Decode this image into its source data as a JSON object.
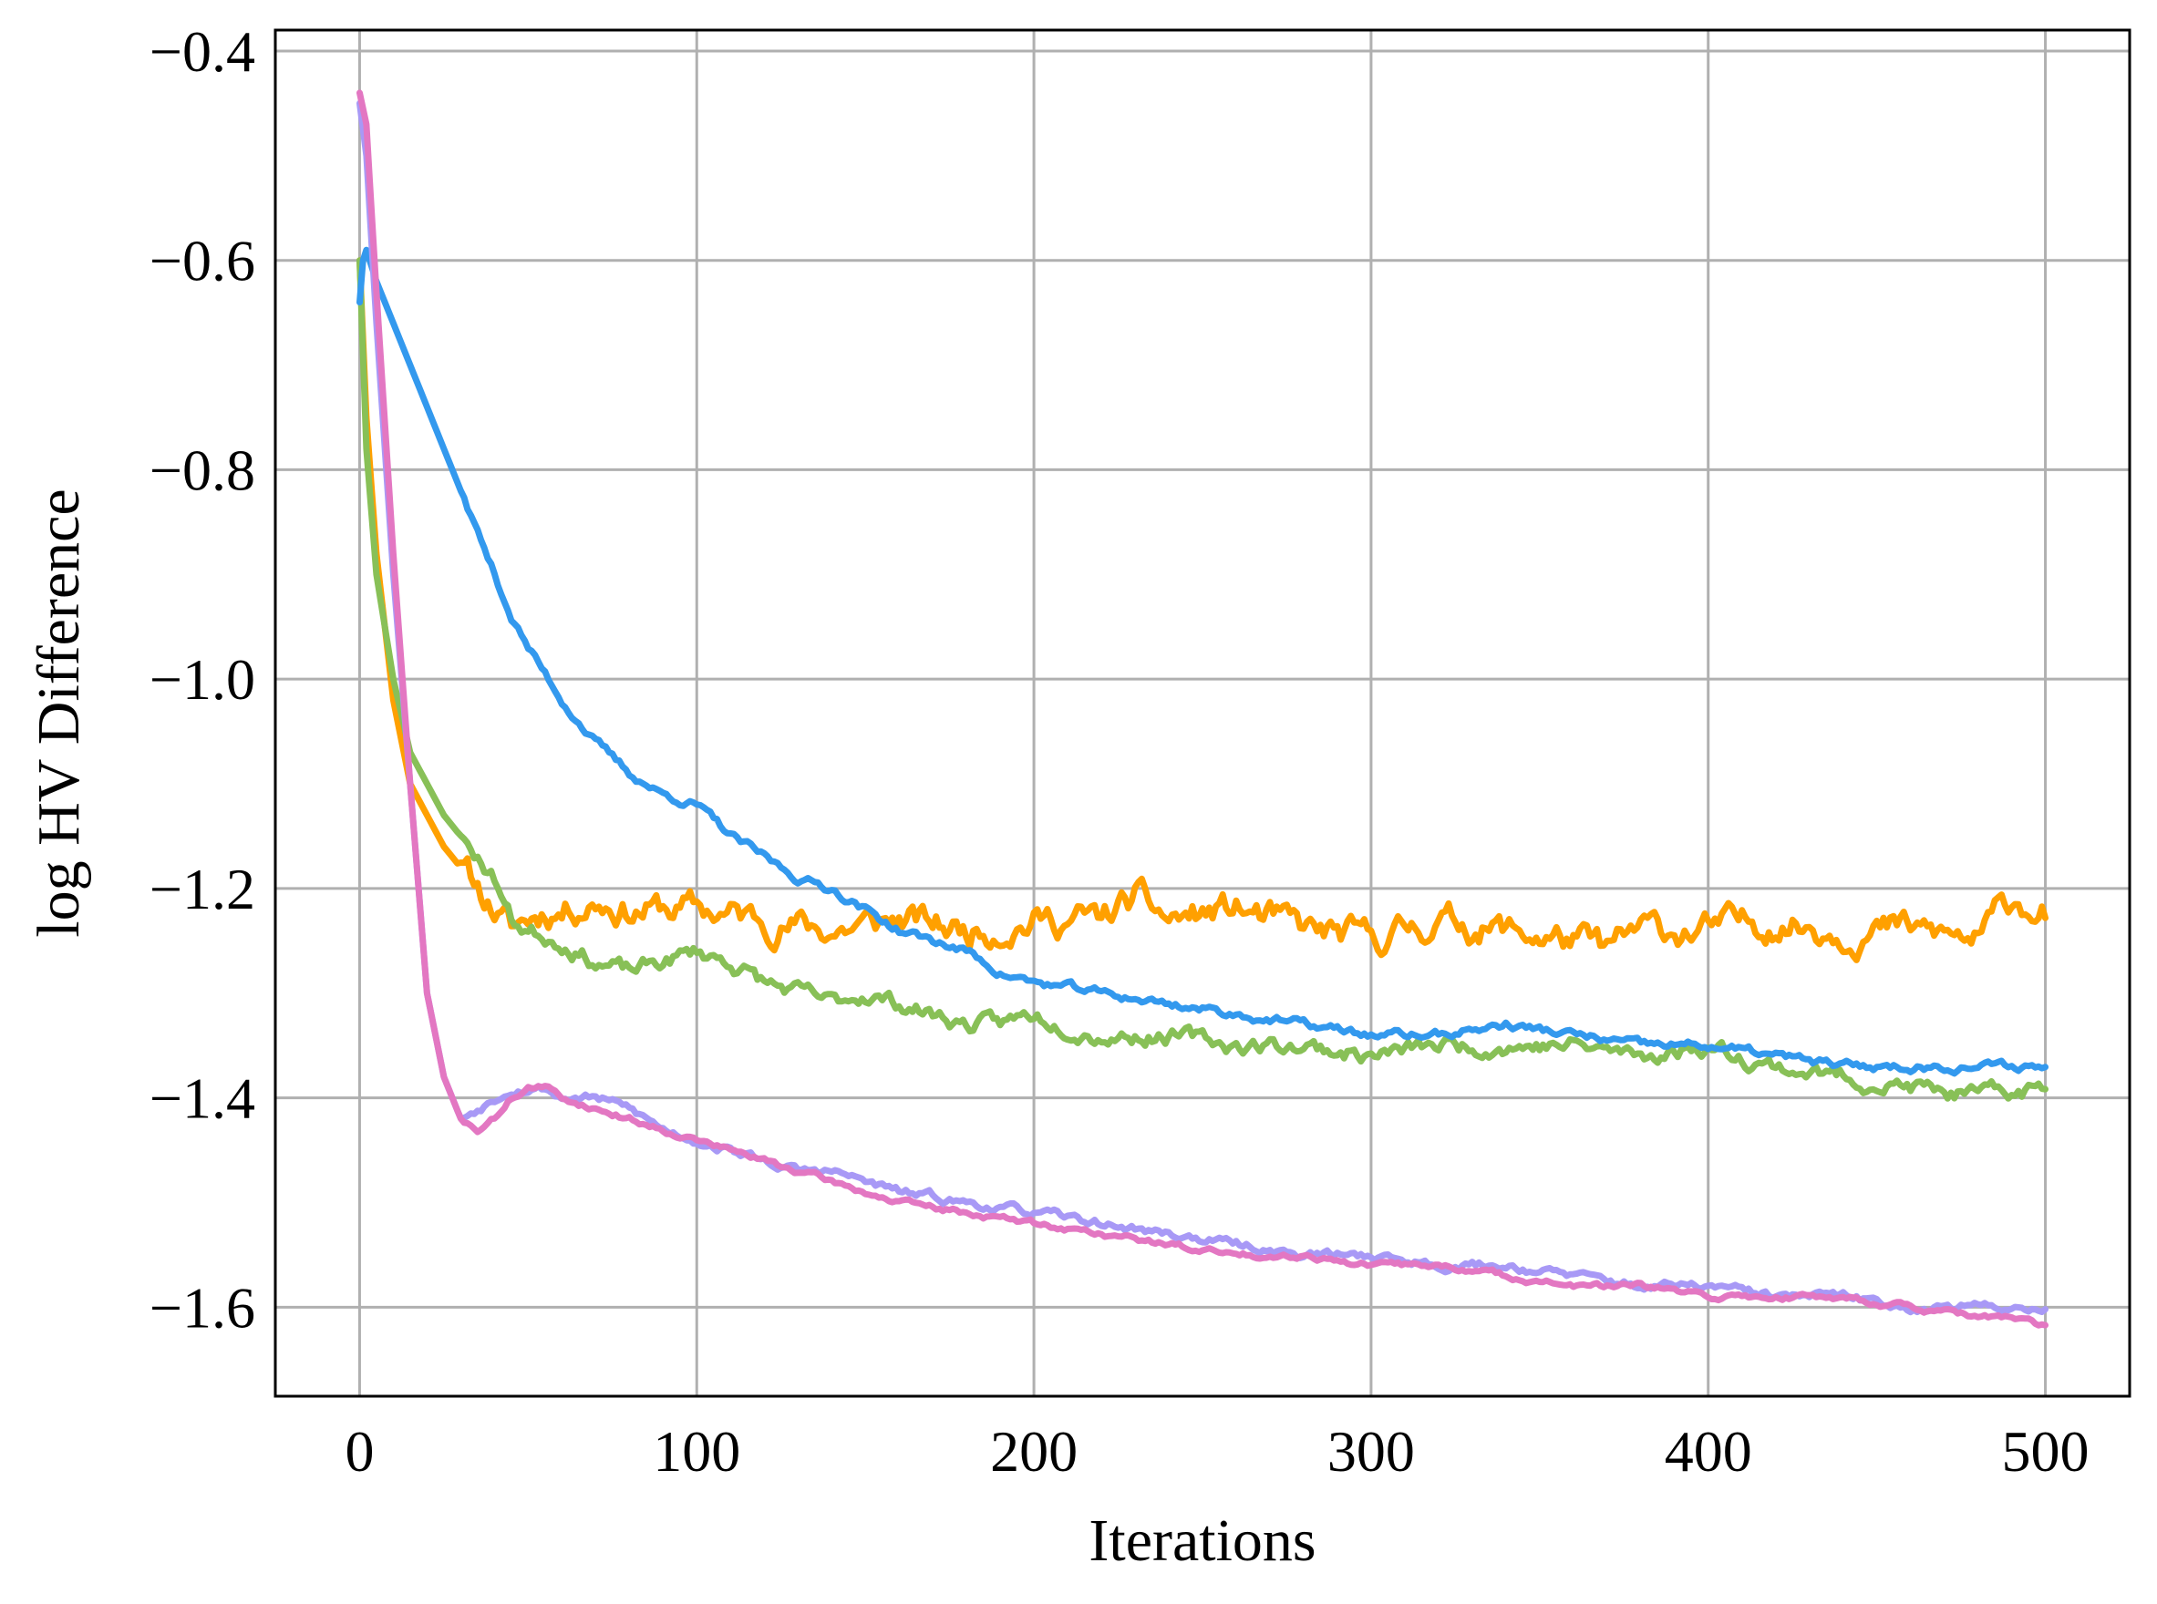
{
  "chart_data": {
    "type": "line",
    "title": "",
    "xlabel": "Iterations",
    "ylabel": "log HV Difference",
    "xlim": [
      -25,
      525
    ],
    "ylim": [
      -1.685,
      -0.38
    ],
    "xticks": [
      0,
      100,
      200,
      300,
      400,
      500
    ],
    "xtick_labels": [
      "0",
      "100",
      "200",
      "300",
      "400",
      "500"
    ],
    "yticks": [
      -0.4,
      -0.6,
      -0.8,
      -1.0,
      -1.2,
      -1.4,
      -1.6
    ],
    "ytick_labels": [
      "−0.4",
      "−0.6",
      "−0.8",
      "−1.0",
      "−1.2",
      "−1.4",
      "−1.6"
    ],
    "grid": true,
    "legend": "none",
    "series": [
      {
        "color": "#ffa000",
        "noise": 0.011,
        "seed": 11,
        "x": [
          0,
          2,
          5,
          10,
          15,
          20,
          25,
          30,
          35,
          40,
          45,
          50,
          55,
          60,
          70,
          80,
          90,
          100,
          120,
          140,
          160,
          180,
          200,
          220,
          230,
          240,
          260,
          280,
          300,
          320,
          340,
          360,
          370,
          380,
          400,
          420,
          440,
          460,
          480,
          490,
          500
        ],
        "y": [
          -0.6,
          -0.75,
          -0.88,
          -1.02,
          -1.1,
          -1.13,
          -1.16,
          -1.18,
          -1.2,
          -1.22,
          -1.24,
          -1.23,
          -1.22,
          -1.22,
          -1.21,
          -1.22,
          -1.22,
          -1.22,
          -1.23,
          -1.24,
          -1.23,
          -1.24,
          -1.23,
          -1.23,
          -1.21,
          -1.23,
          -1.22,
          -1.24,
          -1.25,
          -1.23,
          -1.24,
          -1.25,
          -1.26,
          -1.24,
          -1.24,
          -1.23,
          -1.24,
          -1.24,
          -1.25,
          -1.21,
          -1.22
        ]
      },
      {
        "color": "#88c057",
        "noise": 0.006,
        "seed": 23,
        "x": [
          0,
          2,
          5,
          10,
          15,
          20,
          25,
          30,
          35,
          40,
          45,
          50,
          60,
          70,
          80,
          90,
          100,
          110,
          120,
          130,
          140,
          150,
          160,
          170,
          180,
          190,
          200,
          220,
          240,
          260,
          280,
          300,
          320,
          340,
          360,
          380,
          400,
          420,
          440,
          460,
          480,
          500
        ],
        "y": [
          -0.6,
          -0.78,
          -0.9,
          -1.0,
          -1.07,
          -1.1,
          -1.13,
          -1.15,
          -1.17,
          -1.19,
          -1.23,
          -1.24,
          -1.25,
          -1.27,
          -1.28,
          -1.27,
          -1.26,
          -1.27,
          -1.29,
          -1.3,
          -1.31,
          -1.3,
          -1.31,
          -1.32,
          -1.33,
          -1.33,
          -1.32,
          -1.34,
          -1.34,
          -1.35,
          -1.35,
          -1.36,
          -1.35,
          -1.35,
          -1.35,
          -1.36,
          -1.35,
          -1.37,
          -1.38,
          -1.39,
          -1.4,
          -1.39
        ]
      },
      {
        "color": "#3399ee",
        "noise": 0.003,
        "seed": 37,
        "x": [
          0,
          1,
          2,
          5,
          10,
          15,
          20,
          25,
          30,
          35,
          40,
          45,
          50,
          60,
          70,
          80,
          90,
          100,
          110,
          120,
          130,
          140,
          150,
          160,
          170,
          180,
          190,
          200,
          220,
          240,
          260,
          280,
          300,
          320,
          340,
          360,
          380,
          400,
          420,
          440,
          460,
          480,
          500
        ],
        "y": [
          -0.64,
          -0.6,
          -0.59,
          -0.62,
          -0.66,
          -0.7,
          -0.74,
          -0.78,
          -0.82,
          -0.86,
          -0.9,
          -0.94,
          -0.97,
          -1.02,
          -1.06,
          -1.09,
          -1.11,
          -1.12,
          -1.15,
          -1.17,
          -1.19,
          -1.2,
          -1.22,
          -1.24,
          -1.25,
          -1.26,
          -1.28,
          -1.29,
          -1.3,
          -1.31,
          -1.32,
          -1.33,
          -1.34,
          -1.34,
          -1.33,
          -1.34,
          -1.35,
          -1.35,
          -1.36,
          -1.37,
          -1.37,
          -1.37,
          -1.37
        ]
      },
      {
        "color": "#a899f6",
        "noise": 0.003,
        "seed": 53,
        "x": [
          0,
          2,
          5,
          10,
          15,
          20,
          25,
          30,
          35,
          40,
          45,
          50,
          55,
          60,
          70,
          80,
          90,
          100,
          110,
          120,
          130,
          140,
          160,
          180,
          200,
          220,
          240,
          260,
          280,
          300,
          320,
          340,
          360,
          380,
          400,
          420,
          440,
          460,
          480,
          500
        ],
        "y": [
          -0.45,
          -0.5,
          -0.66,
          -0.9,
          -1.1,
          -1.3,
          -1.38,
          -1.42,
          -1.41,
          -1.4,
          -1.39,
          -1.39,
          -1.39,
          -1.4,
          -1.4,
          -1.41,
          -1.43,
          -1.44,
          -1.45,
          -1.46,
          -1.47,
          -1.47,
          -1.49,
          -1.5,
          -1.51,
          -1.52,
          -1.53,
          -1.54,
          -1.55,
          -1.55,
          -1.56,
          -1.56,
          -1.57,
          -1.58,
          -1.58,
          -1.59,
          -1.59,
          -1.6,
          -1.6,
          -1.6
        ]
      },
      {
        "color": "#e377c2",
        "noise": 0.002,
        "seed": 71,
        "x": [
          0,
          2,
          5,
          10,
          15,
          20,
          25,
          30,
          35,
          40,
          45,
          50,
          55,
          60,
          70,
          80,
          90,
          100,
          110,
          120,
          130,
          140,
          160,
          180,
          200,
          220,
          240,
          260,
          280,
          300,
          320,
          340,
          360,
          380,
          400,
          420,
          440,
          460,
          480,
          490,
          500
        ],
        "y": [
          -0.44,
          -0.47,
          -0.63,
          -0.88,
          -1.1,
          -1.3,
          -1.38,
          -1.42,
          -1.43,
          -1.42,
          -1.4,
          -1.39,
          -1.39,
          -1.4,
          -1.41,
          -1.42,
          -1.43,
          -1.44,
          -1.45,
          -1.46,
          -1.47,
          -1.48,
          -1.5,
          -1.51,
          -1.52,
          -1.53,
          -1.54,
          -1.55,
          -1.55,
          -1.56,
          -1.56,
          -1.57,
          -1.58,
          -1.58,
          -1.59,
          -1.59,
          -1.59,
          -1.6,
          -1.61,
          -1.61,
          -1.62
        ]
      }
    ]
  }
}
